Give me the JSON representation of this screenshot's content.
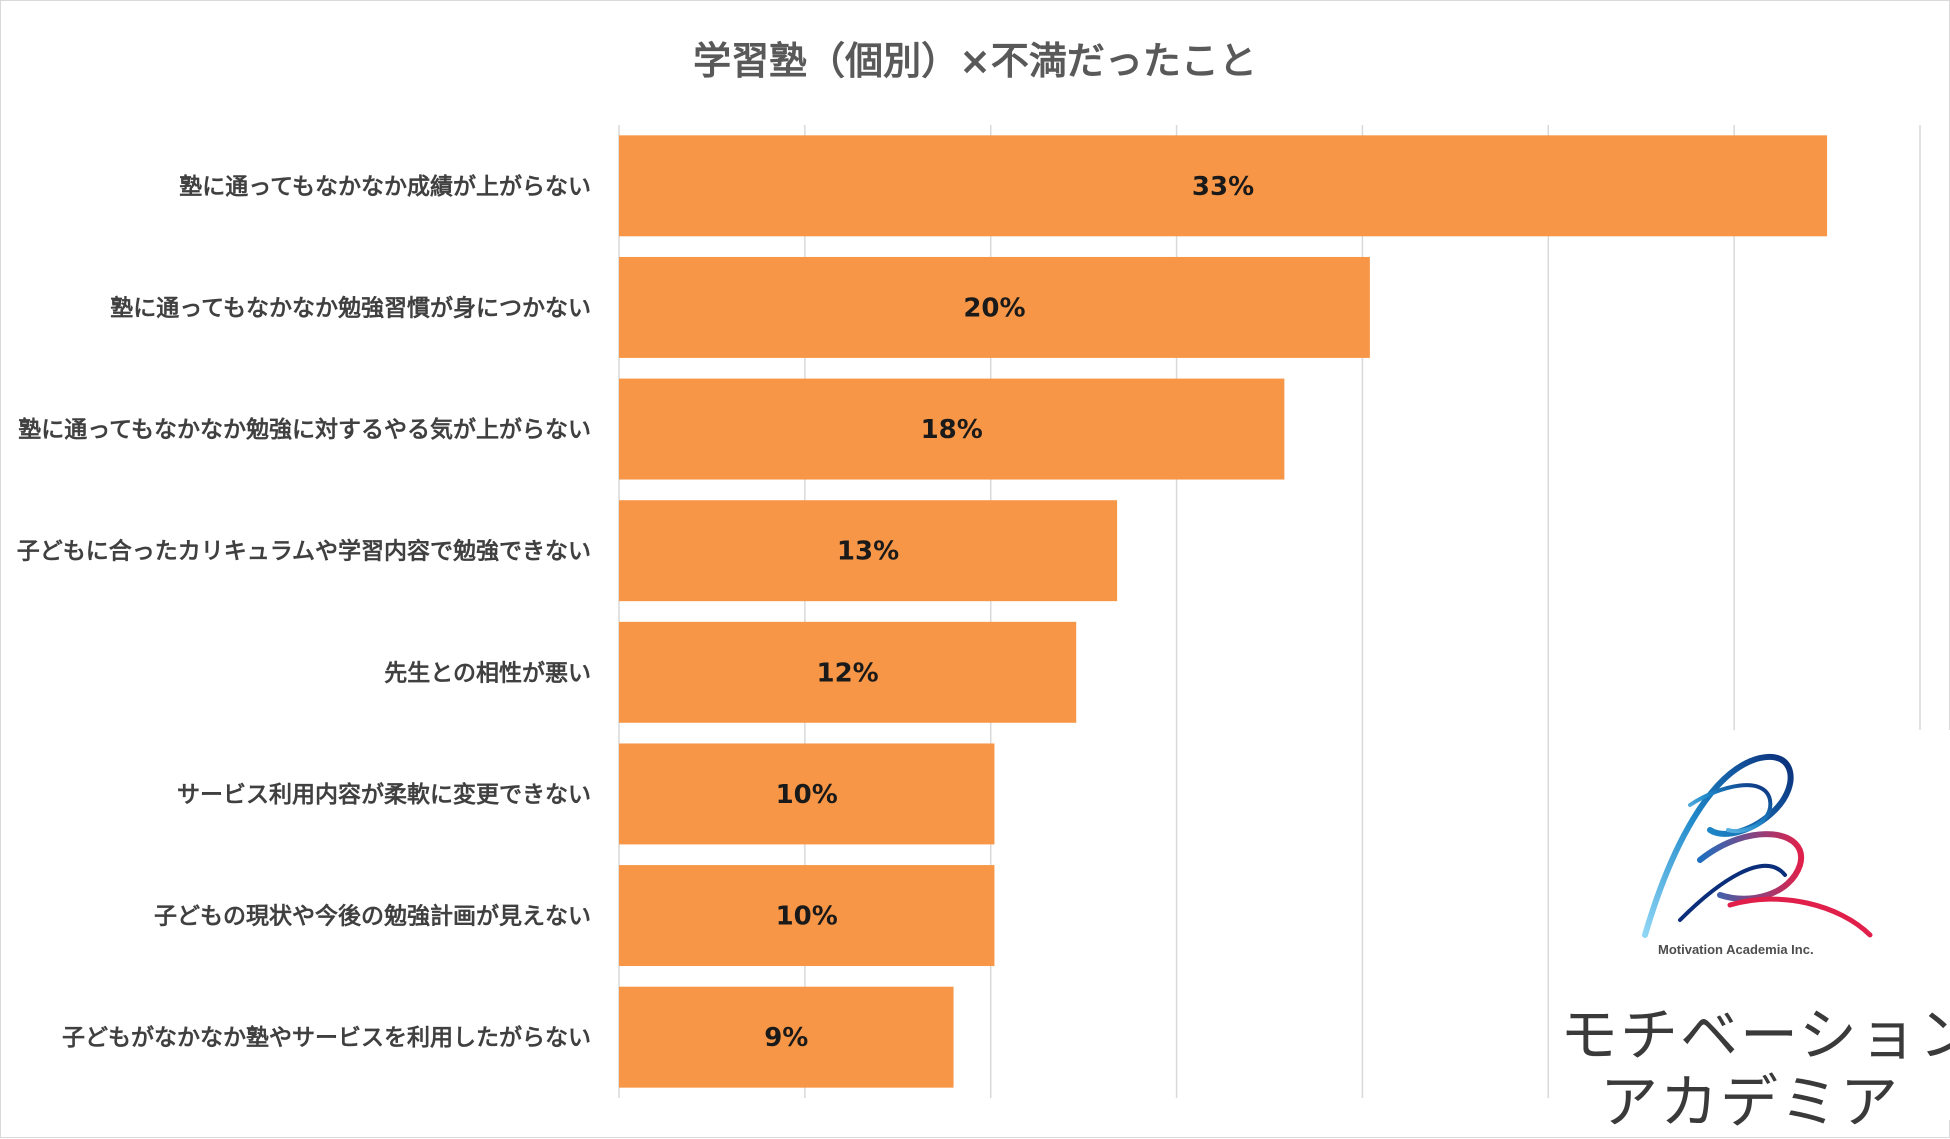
{
  "chart_data": {
    "type": "bar",
    "orientation": "horizontal",
    "title": "学習塾（個別）×不満だったこと",
    "categories": [
      "塾に通ってもなかなか成績が上がらない",
      "塾に通ってもなかなか勉強習慣が身につかない",
      "塾に通ってもなかなか勉強に対するやる気が上がらない",
      "子どもに合ったカリキュラムや学習内容で勉強できない",
      "先生との相性が悪い",
      "サービス利用内容が柔軟に変更できない",
      "子どもの現状や今後の勉強計画が見えない",
      "子どもがなかなか塾やサービスを利用したがらない"
    ],
    "values": [
      32.5,
      20.2,
      17.9,
      13.4,
      12.3,
      10.1,
      10.1,
      9.0
    ],
    "value_labels": [
      "33%",
      "20%",
      "18%",
      "13%",
      "12%",
      "10%",
      "10%",
      "9%"
    ],
    "xlim": [
      0,
      35
    ],
    "grid_step": 5,
    "grid": true,
    "bar_color": "#f79646",
    "grid_color": "#d9d9d9"
  },
  "logo": {
    "subtitle": "Motivation Academia Inc.",
    "name_line1": "モチベーション",
    "name_line2": "アカデミア"
  }
}
